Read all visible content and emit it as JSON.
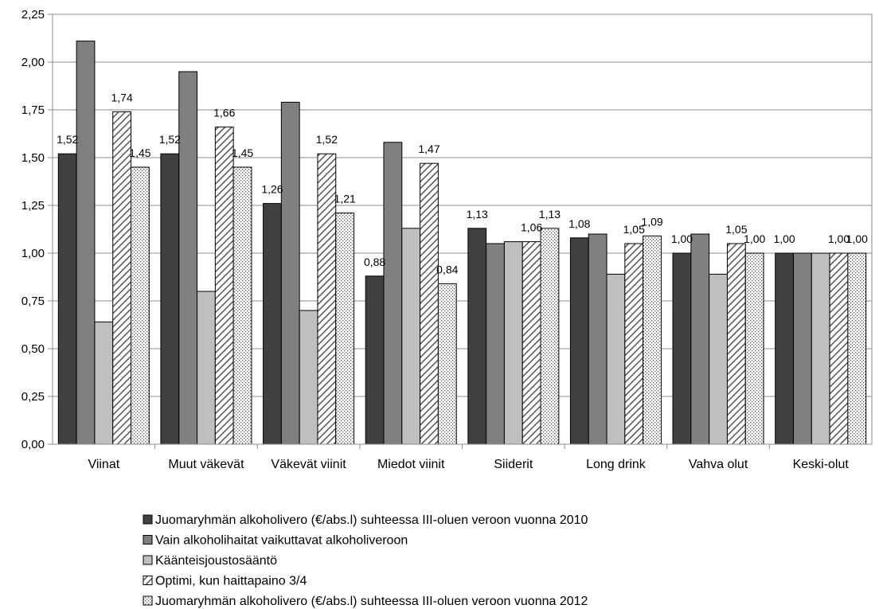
{
  "chart_data": {
    "type": "bar",
    "categories": [
      "Viinat",
      "Muut väkevät",
      "Väkevät viinit",
      "Miedot viinit",
      "Siiderit",
      "Long drink",
      "Vahva olut",
      "Keski-olut"
    ],
    "ylim": [
      0,
      2.25
    ],
    "yticks": [
      "0,00",
      "0,25",
      "0,50",
      "0,75",
      "1,00",
      "1,25",
      "1,50",
      "1,75",
      "2,00",
      "2,25"
    ],
    "grid": true,
    "legend_position": "bottom",
    "series": [
      {
        "name": "Juomaryhmän alkoholivero (€/abs.l) suhteessa III-oluen veroon vuonna 2010",
        "values": [
          1.52,
          1.52,
          1.26,
          0.88,
          1.13,
          1.08,
          1.0,
          1.0
        ],
        "labels": [
          "1,52",
          "1,52",
          "1,26",
          "0,88",
          "1,13",
          "1,08",
          "1,00",
          "1,00"
        ],
        "color": "#404040",
        "pattern": "solid-dark"
      },
      {
        "name": "Vain alkoholihaitat vaikuttavat alkoholiveroon",
        "values": [
          2.11,
          1.95,
          1.79,
          1.58,
          1.05,
          1.1,
          1.1,
          1.0
        ],
        "labels": [
          "",
          "",
          "",
          "",
          "",
          "",
          "",
          ""
        ],
        "color": "#808080",
        "pattern": "solid-mid"
      },
      {
        "name": "Käänteisjoustosääntö",
        "values": [
          0.64,
          0.8,
          0.7,
          1.13,
          1.06,
          0.89,
          0.89,
          1.0
        ],
        "labels": [
          "",
          "",
          "",
          "",
          "",
          "",
          "",
          ""
        ],
        "color": "#bfbfbf",
        "pattern": "solid-light"
      },
      {
        "name": "Optimi, kun haittapaino 3/4",
        "values": [
          1.74,
          1.66,
          1.52,
          1.47,
          1.06,
          1.05,
          1.05,
          1.0
        ],
        "labels": [
          "1,74",
          "1,66",
          "1,52",
          "1,47",
          "1,06",
          "1,05",
          "1,05",
          "1,00"
        ],
        "color": "#555555",
        "pattern": "diagonal"
      },
      {
        "name": "Juomaryhmän alkoholivero (€/abs.l) suhteessa III-oluen veroon vuonna 2012",
        "values": [
          1.45,
          1.45,
          1.21,
          0.84,
          1.13,
          1.09,
          1.0,
          1.0
        ],
        "labels": [
          "1,45",
          "1,45",
          "1,21",
          "0,84",
          "1,13",
          "1,09",
          "1,00",
          "1,00"
        ],
        "color": "#555555",
        "pattern": "dots"
      }
    ]
  }
}
